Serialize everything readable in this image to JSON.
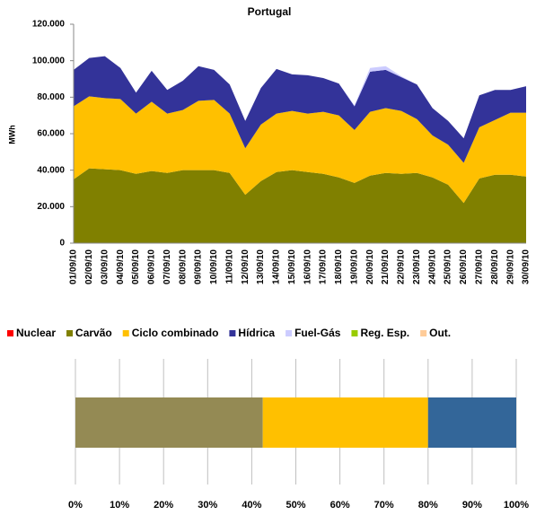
{
  "chart_data": [
    {
      "type": "area",
      "stacked": true,
      "title": "Portugal",
      "y_label": "MWh",
      "categories": [
        "01/09/10",
        "02/09/10",
        "03/09/10",
        "04/09/10",
        "05/09/10",
        "06/09/10",
        "07/09/10",
        "08/09/10",
        "09/09/10",
        "10/09/10",
        "11/09/10",
        "12/09/10",
        "13/09/10",
        "14/09/10",
        "15/09/10",
        "16/09/10",
        "17/09/10",
        "18/09/10",
        "19/09/10",
        "20/09/10",
        "21/09/10",
        "22/09/10",
        "23/09/10",
        "24/09/10",
        "25/09/10",
        "26/09/10",
        "27/09/10",
        "28/09/10",
        "29/09/10",
        "30/09/10"
      ],
      "series": [
        {
          "name": "Nuclear",
          "color": "#ff0000",
          "values": [
            0,
            0,
            0,
            0,
            0,
            0,
            0,
            0,
            0,
            0,
            0,
            0,
            0,
            0,
            0,
            0,
            0,
            0,
            0,
            0,
            0,
            0,
            0,
            0,
            0,
            0,
            0,
            0,
            0,
            0
          ]
        },
        {
          "name": "Carvão",
          "color": "#808000",
          "values": [
            35000,
            41000,
            40500,
            40000,
            38000,
            39500,
            38500,
            40000,
            40000,
            40000,
            38500,
            26500,
            34000,
            39000,
            40000,
            39000,
            38000,
            36000,
            33000,
            37000,
            38500,
            38000,
            38500,
            36000,
            32000,
            22000,
            35500,
            37500,
            37500,
            36500
          ]
        },
        {
          "name": "Ciclo combinado",
          "color": "#ffc000",
          "values": [
            40000,
            39500,
            39000,
            39000,
            33000,
            38000,
            32500,
            33000,
            38000,
            38500,
            32500,
            25500,
            31000,
            32000,
            32500,
            32000,
            34000,
            34000,
            29000,
            35000,
            35500,
            34500,
            29500,
            23000,
            22000,
            22000,
            28000,
            30000,
            34000,
            35000
          ]
        },
        {
          "name": "Hídrica",
          "color": "#333399",
          "values": [
            20000,
            21000,
            23000,
            17000,
            11500,
            17000,
            13000,
            16000,
            19000,
            16500,
            16000,
            15000,
            20000,
            24500,
            20000,
            21000,
            18500,
            17500,
            13000,
            22000,
            21000,
            18500,
            19000,
            15000,
            13000,
            13500,
            17500,
            16500,
            12500,
            14500
          ]
        },
        {
          "name": "Fuel-Gás",
          "color": "#ccccff",
          "values": [
            0,
            0,
            0,
            0,
            0,
            0,
            0,
            0,
            0,
            0,
            0,
            0,
            0,
            0,
            0,
            0,
            0,
            0,
            500,
            2000,
            2000,
            500,
            0,
            0,
            0,
            0,
            0,
            0,
            0,
            0
          ]
        },
        {
          "name": "Reg. Esp.",
          "color": "#99cc00",
          "values": [
            0,
            0,
            0,
            0,
            0,
            0,
            0,
            0,
            0,
            0,
            0,
            0,
            0,
            0,
            0,
            0,
            0,
            0,
            0,
            0,
            0,
            0,
            0,
            0,
            0,
            0,
            0,
            0,
            0,
            0
          ]
        },
        {
          "name": "Out.",
          "color": "#ffcc99",
          "values": [
            0,
            0,
            0,
            0,
            0,
            0,
            0,
            0,
            0,
            0,
            0,
            0,
            0,
            0,
            0,
            0,
            0,
            0,
            0,
            0,
            0,
            0,
            0,
            0,
            0,
            0,
            0,
            0,
            0,
            0
          ]
        }
      ],
      "ylim": [
        0,
        120000
      ],
      "yticks": [
        0,
        {
          "value": 20000,
          "label": "20.000"
        },
        {
          "value": 40000,
          "label": "40.000"
        },
        {
          "value": 60000,
          "label": "60.000"
        },
        {
          "value": 80000,
          "label": "80.000"
        },
        {
          "value": 100000,
          "label": "100.000"
        },
        {
          "value": 120000,
          "label": "120.000"
        }
      ]
    },
    {
      "type": "bar",
      "orientation": "horizontal",
      "stacked": true,
      "grid": true,
      "series": [
        {
          "color": "#948a54",
          "values": [
            42.5
          ]
        },
        {
          "color": "#ffc000",
          "values": [
            37.5
          ]
        },
        {
          "color": "#336699",
          "values": [
            20
          ]
        }
      ],
      "xlim": [
        0,
        100
      ],
      "xticks": [
        {
          "value": 0,
          "label": "0%"
        },
        {
          "value": 10,
          "label": "10%"
        },
        {
          "value": 20,
          "label": "20%"
        },
        {
          "value": 30,
          "label": "30%"
        },
        {
          "value": 40,
          "label": "40%"
        },
        {
          "value": 50,
          "label": "50%"
        },
        {
          "value": 60,
          "label": "60%"
        },
        {
          "value": 70,
          "label": "70%"
        },
        {
          "value": 80,
          "label": "80%"
        },
        {
          "value": 90,
          "label": "90%"
        },
        {
          "value": 100,
          "label": "100%"
        }
      ]
    }
  ]
}
